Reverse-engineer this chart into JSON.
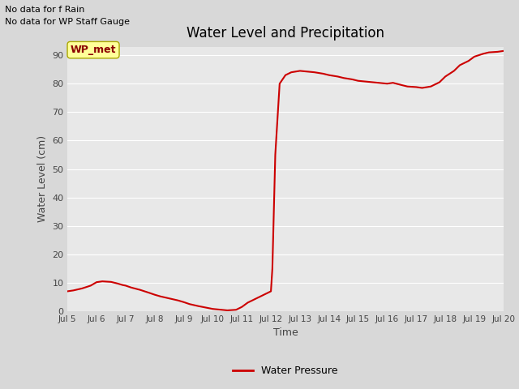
{
  "title": "Water Level and Precipitation",
  "xlabel": "Time",
  "ylabel": "Water Level (cm)",
  "ylim": [
    0,
    93
  ],
  "yticks": [
    0,
    10,
    20,
    30,
    40,
    50,
    60,
    70,
    80,
    90
  ],
  "background_color": "#d8d8d8",
  "plot_bg_color": "#e8e8e8",
  "line_color": "#cc0000",
  "line_width": 1.5,
  "no_data_text1": "No data for f Rain",
  "no_data_text2": "No data for WP Staff Gauge",
  "legend_label": "Water Pressure",
  "wp_met_label": "WP_met",
  "wp_met_box_color": "#ffff99",
  "wp_met_text_color": "#8b0000",
  "xtick_labels": [
    "Jul 5",
    "Jul 6",
    "Jul 7",
    "Jul 8",
    "Jul 9",
    "Jul 10",
    "Jul 11",
    "Jul 12",
    "Jul 13",
    "Jul 14",
    "Jul 15",
    "Jul 16",
    "Jul 17",
    "Jul 18",
    "Jul 19",
    "Jul 20"
  ],
  "x_data": [
    5.0,
    5.2,
    5.5,
    5.8,
    6.0,
    6.2,
    6.5,
    6.7,
    6.9,
    7.0,
    7.2,
    7.5,
    7.8,
    8.0,
    8.2,
    8.5,
    8.8,
    9.0,
    9.2,
    9.5,
    9.8,
    10.0,
    10.3,
    10.5,
    10.8,
    11.0,
    11.2,
    11.5,
    11.7,
    11.9,
    12.0,
    12.05,
    12.15,
    12.3,
    12.5,
    12.7,
    13.0,
    13.3,
    13.5,
    13.8,
    14.0,
    14.3,
    14.5,
    14.8,
    15.0,
    15.2,
    15.5,
    15.8,
    16.0,
    16.2,
    16.5,
    16.7,
    17.0,
    17.2,
    17.5,
    17.8,
    18.0,
    18.3,
    18.5,
    18.8,
    19.0,
    19.3,
    19.5,
    19.8,
    20.0
  ],
  "y_data": [
    7,
    7.3,
    8.0,
    9.0,
    10.2,
    10.5,
    10.3,
    9.8,
    9.2,
    9.0,
    8.3,
    7.5,
    6.5,
    5.8,
    5.2,
    4.5,
    3.8,
    3.2,
    2.5,
    1.8,
    1.2,
    0.8,
    0.5,
    0.3,
    0.5,
    1.5,
    3.0,
    4.5,
    5.5,
    6.5,
    7.0,
    15,
    55,
    80,
    83,
    84,
    84.5,
    84.2,
    84.0,
    83.5,
    83.0,
    82.5,
    82.0,
    81.5,
    81.0,
    80.8,
    80.5,
    80.2,
    80.0,
    80.3,
    79.5,
    79.0,
    78.8,
    78.5,
    79.0,
    80.5,
    82.5,
    84.5,
    86.5,
    88.0,
    89.5,
    90.5,
    91.0,
    91.2,
    91.5
  ]
}
